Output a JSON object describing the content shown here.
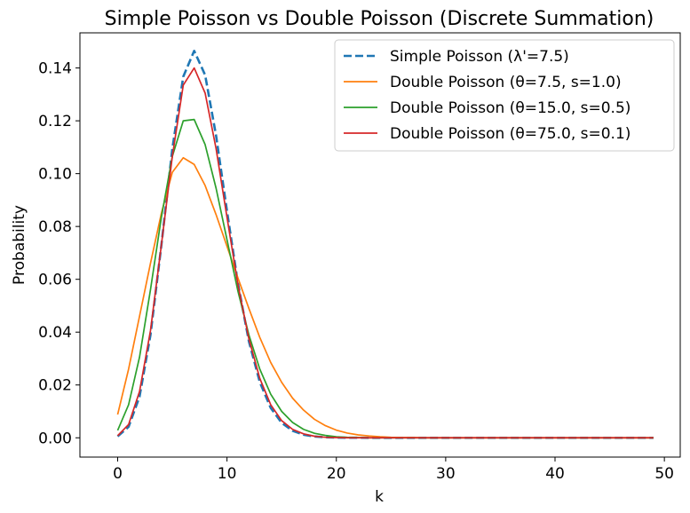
{
  "chart_data": {
    "type": "line",
    "title": "Simple Poisson vs Double Poisson (Discrete Summation)",
    "xlabel": "k",
    "ylabel": "Probability",
    "xlim": [
      -3.45,
      51.45
    ],
    "ylim": [
      -0.0073,
      0.1533
    ],
    "xticks": [
      0,
      10,
      20,
      30,
      40,
      50
    ],
    "yticks": [
      0.0,
      0.02,
      0.04,
      0.06,
      0.08,
      0.1,
      0.12,
      0.14
    ],
    "ytick_labels": [
      "0.00",
      "0.02",
      "0.04",
      "0.06",
      "0.08",
      "0.10",
      "0.12",
      "0.14"
    ],
    "grid": false,
    "legend_position": "upper right",
    "x": [
      0,
      1,
      2,
      3,
      4,
      5,
      6,
      7,
      8,
      9,
      10,
      11,
      12,
      13,
      14,
      15,
      16,
      17,
      18,
      19,
      20,
      21,
      22,
      23,
      24,
      25,
      26,
      27,
      28,
      29,
      30,
      31,
      32,
      33,
      34,
      35,
      36,
      37,
      38,
      39,
      40,
      41,
      42,
      43,
      44,
      45,
      46,
      47,
      48,
      49
    ],
    "series": [
      {
        "name": "Simple Poisson (λ'=7.5)",
        "color": "#1f77b4",
        "dashed": true,
        "values": [
          0.00055,
          0.00415,
          0.01556,
          0.03889,
          0.07291,
          0.10937,
          0.13671,
          0.14648,
          0.13733,
          0.11444,
          0.08583,
          0.05852,
          0.03658,
          0.0211,
          0.0113,
          0.00565,
          0.00265,
          0.00117,
          0.00049,
          0.00019,
          7e-05,
          3e-05,
          1e-05,
          0,
          0,
          0,
          0,
          0,
          0,
          0,
          0,
          0,
          0,
          0,
          0,
          0,
          0,
          0,
          0,
          0,
          0,
          0,
          0,
          0,
          0,
          0,
          0,
          0,
          0,
          0
        ]
      },
      {
        "name": "Double Poisson (θ=7.5, s=1.0)",
        "color": "#ff7f0e",
        "dashed": false,
        "values": [
          0.0088,
          0.026,
          0.046,
          0.066,
          0.085,
          0.1005,
          0.106,
          0.1035,
          0.0955,
          0.0845,
          0.0725,
          0.0605,
          0.049,
          0.038,
          0.0285,
          0.021,
          0.015,
          0.0105,
          0.007,
          0.0046,
          0.0029,
          0.0018,
          0.0011,
          0.0007,
          0.0004,
          0.0002,
          0.0001,
          0.0001,
          0,
          0,
          0,
          0,
          0,
          0,
          0,
          0,
          0,
          0,
          0,
          0,
          0,
          0,
          0,
          0,
          0,
          0,
          0,
          0,
          0,
          0
        ]
      },
      {
        "name": "Double Poisson (θ=15.0, s=0.5)",
        "color": "#2ca02c",
        "dashed": false,
        "values": [
          0.0028,
          0.0125,
          0.0305,
          0.056,
          0.0835,
          0.1065,
          0.12,
          0.1205,
          0.111,
          0.0945,
          0.075,
          0.0555,
          0.039,
          0.026,
          0.0165,
          0.01,
          0.0058,
          0.0032,
          0.0017,
          0.0009,
          0.0004,
          0.0002,
          0.0001,
          0,
          0,
          0,
          0,
          0,
          0,
          0,
          0,
          0,
          0,
          0,
          0,
          0,
          0,
          0,
          0,
          0,
          0,
          0,
          0,
          0,
          0,
          0,
          0,
          0,
          0,
          0
        ]
      },
      {
        "name": "Double Poisson (θ=75.0, s=0.1)",
        "color": "#d62728",
        "dashed": false,
        "values": [
          0.0008,
          0.005,
          0.0175,
          0.0405,
          0.073,
          0.1065,
          0.1335,
          0.14,
          0.1305,
          0.1095,
          0.0835,
          0.058,
          0.0375,
          0.0225,
          0.0125,
          0.0065,
          0.0032,
          0.0015,
          0.0006,
          0.0002,
          0.0001,
          0,
          0,
          0,
          0,
          0,
          0,
          0,
          0,
          0,
          0,
          0,
          0,
          0,
          0,
          0,
          0,
          0,
          0,
          0,
          0,
          0,
          0,
          0,
          0,
          0,
          0,
          0,
          0,
          0
        ]
      }
    ]
  }
}
